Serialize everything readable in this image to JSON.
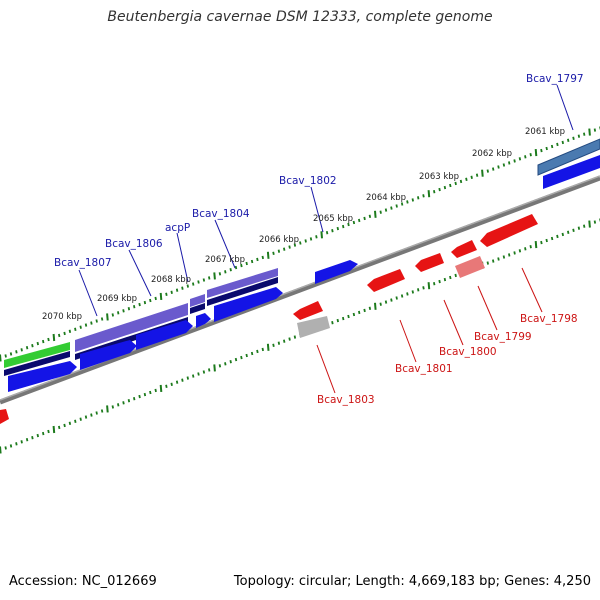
{
  "title": "Beutenbergia cavernae DSM 12333, complete genome",
  "footer": {
    "accession": "Accession: NC_012669",
    "stats": "Topology: circular; Length: 4,669,183 bp; Genes: 4,250"
  },
  "colors": {
    "backbone": "#7a7a7a",
    "tick": "#1c7a1c",
    "forward_gene": "#1414e6",
    "forward_dark": "#0a0a6e",
    "forward_light": "#6a5acd",
    "steel_blue": "#4a7ab0",
    "green_gene": "#33cc33",
    "reverse_gene": "#e61414",
    "reverse_light": "#e87878",
    "gray_gene": "#b0b0b0",
    "forward_label": "#1a1aa8",
    "reverse_label": "#cc1414"
  },
  "kbp_labels": [
    "2061 kbp",
    "2062 kbp",
    "2063 kbp",
    "2064 kbp",
    "2065 kbp",
    "2066 kbp",
    "2067 kbp",
    "2068 kbp",
    "2069 kbp",
    "2070 kbp"
  ],
  "genes_forward": [
    "Bcav_1797",
    "Bcav_1802",
    "Bcav_1804",
    "acpP",
    "Bcav_1806",
    "Bcav_1807"
  ],
  "genes_reverse": [
    "Bcav_1798",
    "Bcav_1799",
    "Bcav_1800",
    "Bcav_1801",
    "Bcav_1803"
  ]
}
